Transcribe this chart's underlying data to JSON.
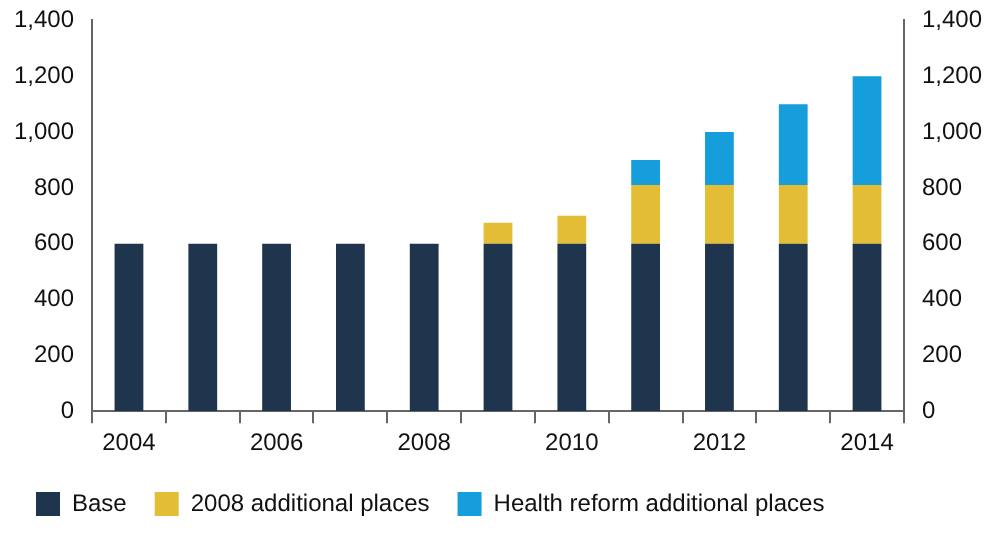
{
  "chart_data": {
    "type": "bar",
    "stacked": true,
    "categories": [
      "2004",
      null,
      "2006",
      null,
      "2008",
      null,
      "2010",
      null,
      "2012",
      null,
      "2014"
    ],
    "series": [
      {
        "name": "Base",
        "color": "#1f344d",
        "values": [
          600,
          600,
          600,
          600,
          600,
          600,
          600,
          600,
          600,
          600,
          600
        ]
      },
      {
        "name": "2008 additional places",
        "color": "#e3bd35",
        "values": [
          null,
          null,
          null,
          null,
          null,
          75,
          100,
          210,
          210,
          210,
          210
        ]
      },
      {
        "name": "Health reform additional places",
        "color": "#169ddb",
        "values": [
          null,
          null,
          null,
          null,
          null,
          null,
          null,
          90,
          190,
          290,
          390
        ]
      }
    ],
    "ylim": [
      0,
      1400
    ],
    "yticks": [
      0,
      200,
      400,
      600,
      800,
      {
        "value": 1000,
        "label": "1,000"
      },
      {
        "value": 1200,
        "label": "1,200"
      },
      {
        "value": 1400,
        "label": "1,400"
      }
    ],
    "y2lim": [
      0,
      1400
    ],
    "y2ticks": [
      0,
      200,
      400,
      600,
      800,
      {
        "value": 1000,
        "label": "1,000"
      },
      {
        "value": 1200,
        "label": "1,200"
      },
      {
        "value": 1400,
        "label": "1,400"
      }
    ],
    "grid": false,
    "legend": "bottom left"
  }
}
